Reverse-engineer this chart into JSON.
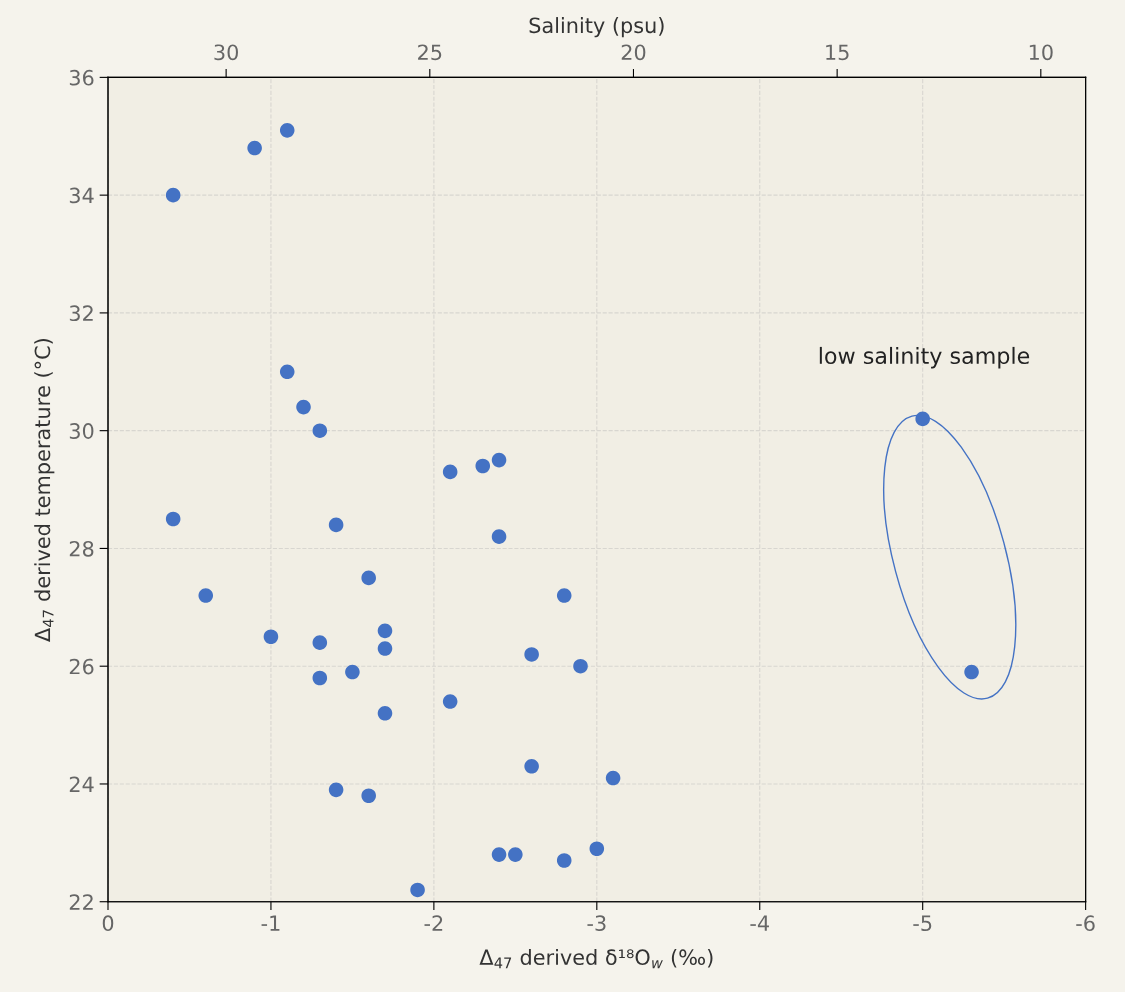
{
  "chart_data": {
    "type": "scatter",
    "xlabel": "Δ$_{47}$ derived δ¹⁸O$_{w}$ (‰)",
    "ylabel": "Δ$_{47}$ derived temperature (°C)",
    "x2label": "Salinity (psu)",
    "xlim": [
      0,
      -6
    ],
    "xticks": [
      0,
      -1,
      -2,
      -3,
      -4,
      -5,
      -6
    ],
    "ylim": [
      22,
      36
    ],
    "yticks": [
      22,
      24,
      26,
      28,
      30,
      32,
      34,
      36
    ],
    "x2lim": [
      32.9,
      8.9
    ],
    "x2ticks": [
      30,
      25,
      20,
      15,
      10
    ],
    "grid": true,
    "marker": "circle",
    "legend": false,
    "series": [
      {
        "color": "#4472c4",
        "x": [
          -0.4,
          -0.9,
          -1.1,
          -1.1,
          -1.2,
          -1.3,
          -2.1,
          -2.3,
          -2.4,
          -0.4,
          -1.4,
          -2.4,
          -1.6,
          -0.6,
          -2.8,
          -1.0,
          -1.3,
          -1.7,
          -1.7,
          -2.6,
          -2.9,
          -1.3,
          -1.5,
          -1.7,
          -2.1,
          -2.6,
          -3.1,
          -1.4,
          -1.6,
          -1.9,
          -2.4,
          -2.5,
          -2.8,
          -3.0,
          -5.0,
          -5.3
        ],
        "values": [
          34.0,
          34.8,
          35.1,
          31.0,
          30.4,
          30.0,
          29.3,
          29.4,
          29.5,
          28.5,
          28.4,
          28.2,
          27.5,
          27.2,
          27.2,
          26.5,
          26.4,
          26.6,
          26.3,
          26.2,
          26.0,
          25.8,
          25.9,
          25.2,
          25.4,
          24.3,
          24.1,
          23.9,
          23.8,
          22.2,
          22.8,
          22.8,
          22.7,
          22.9,
          30.2,
          25.9
        ]
      }
    ],
    "annotations": [
      "low salinity sample"
    ]
  }
}
